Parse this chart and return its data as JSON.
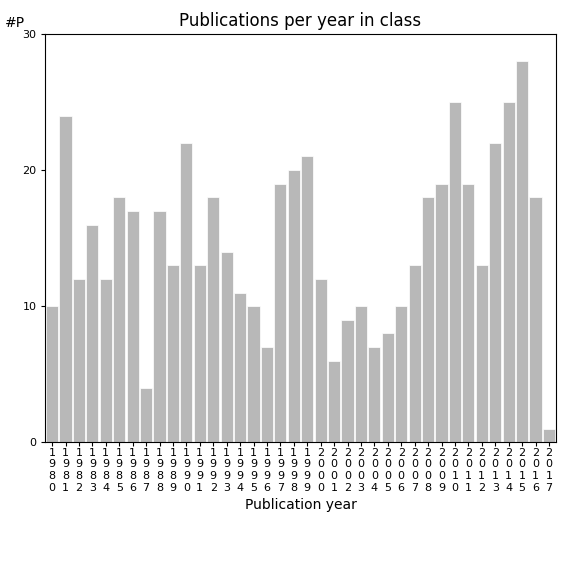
{
  "title": "Publications per year in class",
  "xlabel": "Publication year",
  "ylabel": "#P",
  "years": [
    "1980",
    "1981",
    "1982",
    "1983",
    "1984",
    "1985",
    "1986",
    "1987",
    "1988",
    "1989",
    "1990",
    "1991",
    "1992",
    "1993",
    "1994",
    "1995",
    "1996",
    "1997",
    "1998",
    "1999",
    "2000",
    "2001",
    "2002",
    "2003",
    "2004",
    "2005",
    "2006",
    "2007",
    "2008",
    "2009",
    "2010",
    "2011",
    "2012",
    "2013",
    "2014",
    "2015",
    "2016",
    "2017"
  ],
  "values": [
    10,
    24,
    12,
    16,
    12,
    18,
    17,
    4,
    17,
    13,
    22,
    13,
    18,
    14,
    11,
    10,
    7,
    19,
    20,
    21,
    12,
    6,
    9,
    10,
    7,
    8,
    10,
    13,
    18,
    19,
    25,
    19,
    13,
    22,
    25,
    28,
    18,
    1
  ],
  "bar_color": "#b8b8b8",
  "bar_edge_color": "#ffffff",
  "ylim": [
    0,
    30
  ],
  "yticks": [
    0,
    10,
    20,
    30
  ],
  "background_color": "#ffffff",
  "title_fontsize": 12,
  "label_fontsize": 10,
  "tick_fontsize": 8
}
